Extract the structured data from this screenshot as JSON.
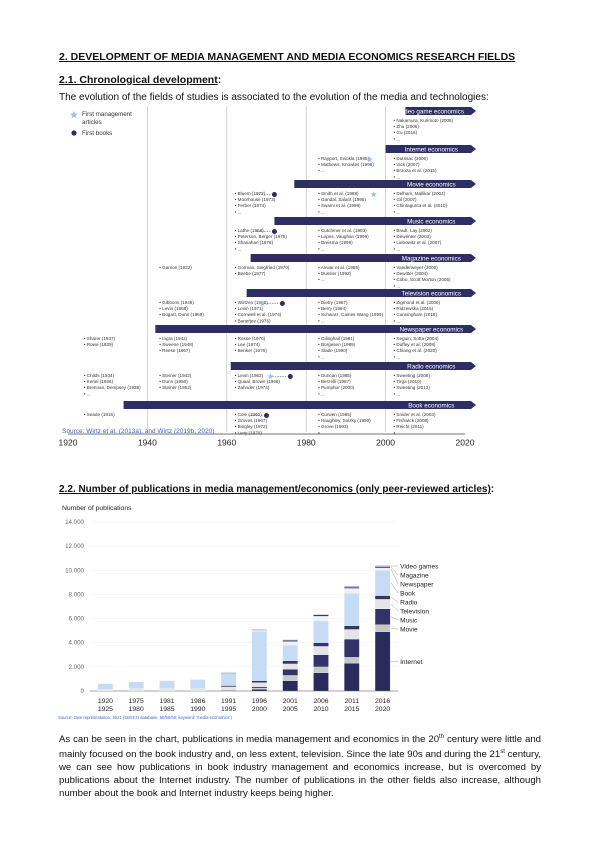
{
  "section_title": "2. DEVELOPMENT OF MEDIA MANAGEMENT AND MEDIA ECONOMICS RESEARCH FIELDS",
  "sub1": {
    "title": "2.1. Chronological development",
    "suffix": ":"
  },
  "intro": "The evolution of the fields of studies is associated to the evolution of the media and technologies:",
  "timeline": {
    "legend": [
      {
        "label": "First management articles",
        "label_line1": "First management",
        "label_line2": "articles",
        "icon": "star-icon",
        "color": "#9cc2ea"
      },
      {
        "label": "First books",
        "icon": "dot-icon",
        "color": "#2c2e66"
      }
    ],
    "axis_ticks": [
      "1920",
      "1940",
      "1960",
      "1980",
      "2000",
      "2020"
    ],
    "source": "Source: Wirtz et al. (2013a), and Wirtz (2019b, 2020)",
    "bars": [
      {
        "label": "Video game economics",
        "start": 2005
      },
      {
        "label": "Internet economics",
        "start": 2000
      },
      {
        "label": "Movie economics",
        "start": 1977
      },
      {
        "label": "Music economics",
        "start": 1972
      },
      {
        "label": "Magazine economics",
        "start": 1966
      },
      {
        "label": "Television economics",
        "start": 1965
      },
      {
        "label": "Newspaper economics",
        "start": 1942
      },
      {
        "label": "Radio economics",
        "start": 1961
      },
      {
        "label": "Book economics",
        "start": 1934
      }
    ],
    "refs": [
      {
        "lines": [
          "• Nakamura, Kurimoto (2006)",
          "• Zhu (2006)",
          "• Gu (2016)",
          "• ..."
        ],
        "year": 2002,
        "row": 0
      },
      {
        "lines": [
          "• Rayport, Sviokla (1995)",
          "• Mathews, Knowles (1996)",
          "• ..."
        ],
        "year": 1983,
        "row": 1
      },
      {
        "lines": [
          "• Dutrisac (2000)",
          "• Vick (2007)",
          "• Brzoza et al. (2015)",
          "• ..."
        ],
        "year": 2002,
        "row": 1
      },
      {
        "lines": [
          "• Bluem (1972)",
          "• Moorhouse (1973)",
          "• Ferber (1974)",
          "• ..."
        ],
        "year": 1962,
        "row": 2
      },
      {
        "lines": [
          "• Smith et al. (1988)",
          "• Gandal, Salant (1995)",
          "• Swami et al. (1999)",
          "• ..."
        ],
        "year": 1983,
        "row": 2
      },
      {
        "lines": [
          "• Delham, Mallikar (2004)",
          "• Gil (2007)",
          "• Chintagunta et al. (2010)",
          "• ..."
        ],
        "year": 2002,
        "row": 2
      },
      {
        "lines": [
          "• Lathe (1968)",
          "• Peterson, Berger (1975)",
          "• Shanahan (1978)",
          "• ..."
        ],
        "year": 1962,
        "row": 3
      },
      {
        "lines": [
          "• Cutchmer et al. (1993)",
          "• Lopes, Vaughan (1999)",
          "• Dreisma (1999)",
          "• ..."
        ],
        "year": 1983,
        "row": 3
      },
      {
        "lines": [
          "• Bradt, Lay (2002)",
          "• Dewenter (2003)",
          "• Liebowitz et al. (2007)",
          "• ..."
        ],
        "year": 2002,
        "row": 3
      },
      {
        "lines": [
          "• Gamon (1932)"
        ],
        "year": 1943,
        "row": 4
      },
      {
        "lines": [
          "• Gorman, Siegfried (1970)",
          "• Beebe (1977)"
        ],
        "year": 1962,
        "row": 4
      },
      {
        "lines": [
          "• Anwar et al. (1986)",
          "• Dussler (1992)",
          "• ..."
        ],
        "year": 1983,
        "row": 4
      },
      {
        "lines": [
          "• Vanderweyer (2000)",
          "• Dewitter (2004)",
          "• Cobo, Scott Morton (2005)",
          "• ..."
        ],
        "year": 2002,
        "row": 4
      },
      {
        "lines": [
          "• Gibbons (1946)",
          "• Levin (1958)",
          "• Bogart, Dunn (1959)"
        ],
        "year": 1943,
        "row": 5
      },
      {
        "lines": [
          "• Wirtzen (1963)",
          "• Levin (1971)",
          "• Cornwell et al. (1974)",
          "• Banerjee (1976)"
        ],
        "year": 1962,
        "row": 5
      },
      {
        "lines": [
          "• Dietry (1987)",
          "• Berry (1994)",
          "• Schwarz, Caines Wang (1999)",
          "• ..."
        ],
        "year": 1983,
        "row": 5
      },
      {
        "lines": [
          "• Zigmond et al. (2009)",
          "• Ridzewska (2015)",
          "• Cunningham (2019)",
          "• ..."
        ],
        "year": 2002,
        "row": 5
      },
      {
        "lines": [
          "• Sharer (1937)",
          "• Rowe (1939)"
        ],
        "year": 1924,
        "row": 6
      },
      {
        "lines": [
          "• Ingra (1942)",
          "• Sweene (1948)",
          "• Reese (1967)"
        ],
        "year": 1943,
        "row": 6
      },
      {
        "lines": [
          "• Rosse (1970)",
          "• Lee (1974)",
          "• Benker (1976)"
        ],
        "year": 1962,
        "row": 6
      },
      {
        "lines": [
          "• Gilinghail (1981)",
          "• Borgesen (1989)",
          "• Slade (1990)",
          "• ..."
        ],
        "year": 1983,
        "row": 6
      },
      {
        "lines": [
          "• Seguin, Sotta (2004)",
          "• Duffey et al. (2008)",
          "• Chiang et al. (2020)",
          "• ..."
        ],
        "year": 2002,
        "row": 6
      },
      {
        "lines": [
          "• Childs (1934)",
          "• Keriel (1936)",
          "• Brennan, Dempsey (1938)",
          "• ..."
        ],
        "year": 1924,
        "row": 7
      },
      {
        "lines": [
          "• Steiner (1942)",
          "• Dunn (1950)",
          "• Steiner (1952)"
        ],
        "year": 1943,
        "row": 7
      },
      {
        "lines": [
          "• Levin (1962)",
          "• Quaal, Brown (1968)",
          "• Zahnder (1974)"
        ],
        "year": 1962,
        "row": 7
      },
      {
        "lines": [
          "• Duncan (1985)",
          "• Berzelli (1987)",
          "• Pumphur (2000)",
          "• ..."
        ],
        "year": 1983,
        "row": 7
      },
      {
        "lines": [
          "• Sweeting (2008)",
          "• Tirga (2010)",
          "• Sweeting (2012)",
          "• ..."
        ],
        "year": 2002,
        "row": 7
      },
      {
        "lines": [
          "• Seade (1915)"
        ],
        "year": 1924,
        "row": 8
      },
      {
        "lines": [
          "• Cole (1960)",
          "• Groves (1967)",
          "• Bingley (1972)",
          "• Levy (1970)"
        ],
        "year": 1962,
        "row": 8
      },
      {
        "lines": [
          "• Curwen (1985)",
          "• Haughley, Solzky (1990)",
          "• Grove (1993)",
          "• ..."
        ],
        "year": 1983,
        "row": 8
      },
      {
        "lines": [
          "• Snider et al. (2003)",
          "• Fishwick (2008)",
          "• Reicht (2011)",
          "• ..."
        ],
        "year": 2002,
        "row": 8
      }
    ],
    "markers": [
      {
        "type": "star",
        "year": 1996,
        "row": 1
      },
      {
        "type": "dot",
        "year": 1972,
        "row": 2
      },
      {
        "type": "star",
        "year": 1997,
        "row": 2
      },
      {
        "type": "dot",
        "year": 1972,
        "row": 3
      },
      {
        "type": "star",
        "year": 1969,
        "row": 5
      },
      {
        "type": "dot",
        "year": 1974,
        "row": 5
      },
      {
        "type": "star",
        "year": 1971,
        "row": 7
      },
      {
        "type": "dot",
        "year": 1976,
        "row": 7
      },
      {
        "type": "dot",
        "year": 1970,
        "row": 8
      }
    ]
  },
  "sub2": {
    "title": "2.2. Number of publications in media management/economics (only peer-reviewed articles)",
    "suffix": ":"
  },
  "chart_data": {
    "type": "bar",
    "stacked": true,
    "ylabel": "Number of publications",
    "ylim": [
      0,
      14000
    ],
    "yticks": [
      "0",
      "2.000",
      "4.000",
      "6.000",
      "8.000",
      "10.000",
      "12.000",
      "14.000"
    ],
    "categories": [
      "1920-1925",
      "1975-1980",
      "1981-1985",
      "1986-1990",
      "1991-1995",
      "1996-2000",
      "2001-2005",
      "2006-2010",
      "2011-2015",
      "2016-2020"
    ],
    "category_labels": [
      [
        "1920",
        "1925"
      ],
      [
        "1975",
        "1980"
      ],
      [
        "1981",
        "1985"
      ],
      [
        "1986",
        "1990"
      ],
      [
        "1991",
        "1995"
      ],
      [
        "1996",
        "2000"
      ],
      [
        "2001",
        "2005"
      ],
      [
        "2006",
        "2010"
      ],
      [
        "2011",
        "2015"
      ],
      [
        "2016",
        "2020"
      ]
    ],
    "series": [
      {
        "name": "Internet",
        "color": "#2b2a5c",
        "values": [
          0,
          0,
          0,
          0,
          0,
          150,
          850,
          1500,
          2300,
          4900
        ]
      },
      {
        "name": "Movie",
        "color": "#c8c8c8",
        "values": [
          0,
          0,
          0,
          0,
          50,
          100,
          450,
          500,
          500,
          600
        ]
      },
      {
        "name": "Music",
        "color": "#33336b",
        "values": [
          0,
          0,
          0,
          0,
          50,
          100,
          500,
          1000,
          1500,
          1300
        ]
      },
      {
        "name": "Television",
        "color": "#e5e5e5",
        "values": [
          150,
          200,
          200,
          200,
          250,
          350,
          450,
          700,
          800,
          800
        ]
      },
      {
        "name": "Radio",
        "color": "#363666",
        "values": [
          0,
          0,
          0,
          0,
          100,
          150,
          250,
          300,
          300,
          300
        ]
      },
      {
        "name": "Book",
        "color": "#c6dcf5",
        "values": [
          450,
          550,
          650,
          750,
          1000,
          4100,
          1300,
          1800,
          2700,
          2100
        ]
      },
      {
        "name": "Newspaper",
        "color": "#f0f0f0",
        "values": [
          0,
          0,
          0,
          0,
          40,
          100,
          300,
          400,
          400,
          200
        ]
      },
      {
        "name": "Magazine",
        "color": "#303060",
        "values": [
          0,
          0,
          0,
          0,
          20,
          30,
          100,
          100,
          100,
          100
        ]
      },
      {
        "name": "Video games",
        "color": "#9fb4d0",
        "values": [
          0,
          0,
          0,
          0,
          0,
          0,
          50,
          50,
          100,
          100
        ]
      }
    ],
    "source": "Source: Own representation, 2021 (EBSCO database, 50/50/50; keyword: 'media economics')"
  },
  "paragraph": {
    "p1": "As can be seen in the chart, publications in media management and economics in the 20",
    "sup1": "th",
    "p2": " century were little and mainly focused on the book industry and, on less extent, television. Since the late 90s and during the 21",
    "sup2": "st",
    "p3": " century, we can see how publications in book industry management and economics increase, but is overcomed by publications about the Internet industry. The number of publications in the other fields also increase, although number about the book and Internet industry keeps being higher."
  }
}
